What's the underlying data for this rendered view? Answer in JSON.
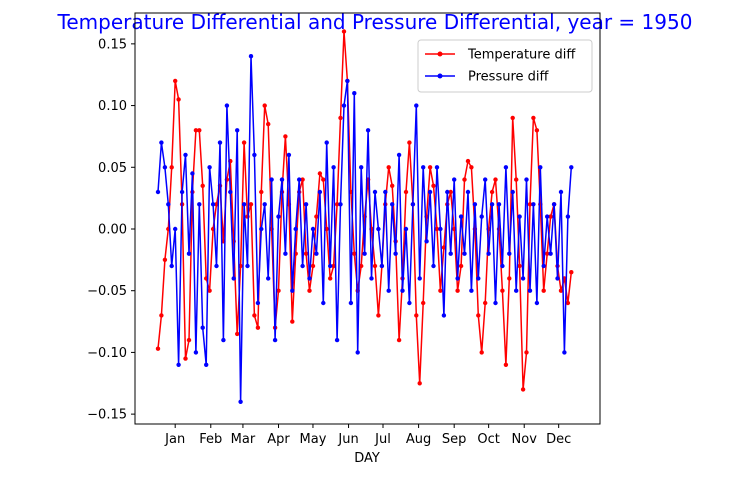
{
  "chart_data": {
    "type": "line",
    "title": "Temperature Differential and Pressure Differential, year = 1950",
    "title_color": "#0000ff",
    "xlabel": "DAY",
    "ylabel": "",
    "x_ticks": [
      "Jan",
      "Feb",
      "Mar",
      "Apr",
      "May",
      "Jun",
      "Jul",
      "Aug",
      "Sep",
      "Oct",
      "Nov",
      "Dec"
    ],
    "x_tick_days": [
      15,
      46,
      74,
      105,
      135,
      166,
      196,
      227,
      258,
      288,
      319,
      349
    ],
    "xlim": [
      -20,
      385
    ],
    "ylim": [
      -0.158,
      0.175
    ],
    "y_ticks": [
      -0.15,
      -0.1,
      -0.05,
      0.0,
      0.05,
      0.1,
      0.15
    ],
    "y_tick_labels": [
      "−0.15",
      "−0.10",
      "−0.05",
      "0.00",
      "0.05",
      "0.10",
      "0.15"
    ],
    "grid": false,
    "legend_position": "top-right",
    "series": [
      {
        "name": "Temperature diff",
        "color": "#ff0000",
        "marker": "point",
        "x": [
          0,
          3,
          6,
          9,
          12,
          15,
          18,
          21,
          24,
          27,
          30,
          33,
          36,
          39,
          42,
          45,
          48,
          51,
          54,
          57,
          60,
          63,
          66,
          69,
          72,
          75,
          78,
          81,
          84,
          87,
          90,
          93,
          96,
          99,
          102,
          105,
          108,
          111,
          114,
          117,
          120,
          123,
          126,
          129,
          132,
          135,
          138,
          141,
          144,
          147,
          150,
          153,
          156,
          159,
          162,
          165,
          168,
          171,
          174,
          177,
          180,
          183,
          186,
          189,
          192,
          195,
          198,
          201,
          204,
          207,
          210,
          213,
          216,
          219,
          222,
          225,
          228,
          231,
          234,
          237,
          240,
          243,
          246,
          249,
          252,
          255,
          258,
          261,
          264,
          267,
          270,
          273,
          276,
          279,
          282,
          285,
          288,
          291,
          294,
          297,
          300,
          303,
          306,
          309,
          312,
          315,
          318,
          321,
          324,
          327,
          330,
          333,
          336,
          339,
          342,
          345,
          348,
          351,
          354,
          357,
          360
        ],
        "y": [
          -0.097,
          -0.07,
          -0.025,
          0.0,
          0.05,
          0.12,
          0.105,
          0.02,
          -0.105,
          -0.09,
          0.03,
          0.08,
          0.08,
          0.035,
          -0.04,
          -0.05,
          0.0,
          0.02,
          0.035,
          -0.01,
          0.04,
          0.055,
          -0.01,
          -0.085,
          -0.03,
          0.07,
          0.01,
          0.02,
          -0.07,
          -0.08,
          0.03,
          0.1,
          0.085,
          0.0,
          -0.08,
          -0.05,
          0.03,
          0.075,
          0.02,
          -0.075,
          -0.02,
          0.03,
          0.04,
          -0.02,
          -0.05,
          -0.03,
          0.01,
          0.045,
          0.04,
          0.0,
          -0.04,
          -0.03,
          0.02,
          0.09,
          0.16,
          0.12,
          0.03,
          -0.02,
          -0.05,
          -0.03,
          0.01,
          0.04,
          0.0,
          -0.03,
          -0.07,
          -0.03,
          0.02,
          0.05,
          0.035,
          -0.01,
          -0.09,
          -0.04,
          0.03,
          0.07,
          0.02,
          -0.07,
          -0.125,
          -0.06,
          0.01,
          0.05,
          0.035,
          0.0,
          -0.05,
          -0.015,
          0.02,
          0.03,
          0.0,
          -0.05,
          -0.03,
          0.04,
          0.055,
          0.05,
          0.0,
          -0.07,
          -0.1,
          -0.06,
          0.0,
          0.03,
          0.04,
          0.0,
          -0.05,
          -0.11,
          -0.04,
          0.09,
          0.04,
          -0.03,
          -0.13,
          -0.1,
          0.02,
          0.09,
          0.08,
          0.02,
          -0.05,
          -0.02,
          0.01,
          0.02,
          -0.03,
          -0.05,
          -0.04,
          -0.06,
          -0.035
        ]
      },
      {
        "name": "Pressure diff",
        "color": "#0000ff",
        "marker": "point",
        "x": [
          0,
          3,
          6,
          9,
          12,
          15,
          18,
          21,
          24,
          27,
          30,
          33,
          36,
          39,
          42,
          45,
          48,
          51,
          54,
          57,
          60,
          63,
          66,
          69,
          72,
          75,
          78,
          81,
          84,
          87,
          90,
          93,
          96,
          99,
          102,
          105,
          108,
          111,
          114,
          117,
          120,
          123,
          126,
          129,
          132,
          135,
          138,
          141,
          144,
          147,
          150,
          153,
          156,
          159,
          162,
          165,
          168,
          171,
          174,
          177,
          180,
          183,
          186,
          189,
          192,
          195,
          198,
          201,
          204,
          207,
          210,
          213,
          216,
          219,
          222,
          225,
          228,
          231,
          234,
          237,
          240,
          243,
          246,
          249,
          252,
          255,
          258,
          261,
          264,
          267,
          270,
          273,
          276,
          279,
          282,
          285,
          288,
          291,
          294,
          297,
          300,
          303,
          306,
          309,
          312,
          315,
          318,
          321,
          324,
          327,
          330,
          333,
          336,
          339,
          342,
          345,
          348,
          351,
          354,
          357,
          360
        ],
        "y": [
          0.03,
          0.07,
          0.05,
          0.02,
          -0.03,
          0.0,
          -0.11,
          0.03,
          0.06,
          -0.02,
          0.045,
          -0.1,
          0.02,
          -0.08,
          -0.11,
          0.05,
          0.02,
          -0.03,
          0.07,
          -0.09,
          0.1,
          0.03,
          -0.04,
          0.08,
          -0.14,
          0.02,
          -0.03,
          0.14,
          0.06,
          -0.06,
          0.0,
          0.02,
          -0.04,
          0.04,
          -0.09,
          0.01,
          0.04,
          -0.02,
          0.06,
          -0.05,
          0.0,
          0.04,
          -0.03,
          0.02,
          -0.04,
          0.0,
          -0.02,
          0.03,
          -0.06,
          0.07,
          -0.03,
          0.05,
          -0.09,
          0.02,
          0.1,
          0.12,
          -0.06,
          0.11,
          -0.1,
          0.05,
          -0.02,
          0.08,
          -0.04,
          0.03,
          0.0,
          -0.03,
          0.03,
          -0.05,
          0.02,
          -0.02,
          0.06,
          -0.05,
          0.0,
          -0.06,
          0.02,
          0.1,
          -0.04,
          0.05,
          -0.01,
          0.03,
          -0.03,
          0.05,
          0.0,
          -0.07,
          0.03,
          -0.02,
          0.04,
          -0.04,
          0.01,
          -0.02,
          0.03,
          -0.05,
          0.02,
          -0.04,
          0.01,
          0.04,
          -0.02,
          0.02,
          -0.06,
          0.02,
          -0.03,
          0.05,
          -0.02,
          0.03,
          -0.05,
          0.01,
          -0.04,
          0.04,
          -0.05,
          0.02,
          -0.06,
          0.05,
          -0.03,
          0.01,
          -0.02,
          0.02,
          -0.04,
          0.03,
          -0.1,
          0.01,
          0.05
        ]
      }
    ]
  }
}
